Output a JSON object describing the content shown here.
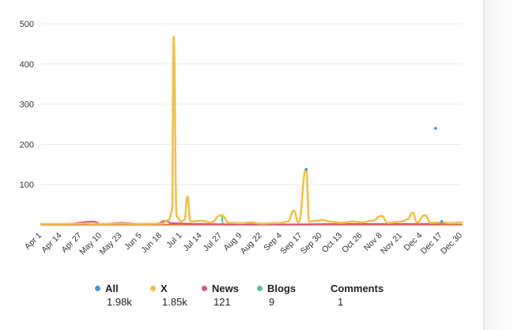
{
  "chart_data": {
    "type": "line",
    "title": "",
    "xlabel": "",
    "ylabel": "",
    "ylim": [
      0,
      500
    ],
    "yticks": [
      100,
      200,
      300,
      400,
      500
    ],
    "grid": true,
    "legend_position": "bottom",
    "x_tick_labels": [
      "Apr 1",
      "Apr 14",
      "Apr 27",
      "May 10",
      "May 23",
      "Jun 5",
      "Jun 18",
      "Jul 1",
      "Jul 14",
      "Jul 27",
      "Aug 9",
      "Aug 22",
      "Sep 4",
      "Sep 17",
      "Sep 30",
      "Oct 13",
      "Oct 26",
      "Nov 8",
      "Nov 21",
      "Dec 4",
      "Dec 17",
      "Dec 30"
    ],
    "x_range": [
      "Apr 1",
      "Dec 30"
    ],
    "series": [
      {
        "name": "All",
        "color": "#4a8fd6",
        "total": "1.98k",
        "points": [
          [
            "Dec 13",
            240
          ],
          [
            "Sep 20",
            138
          ],
          [
            "Dec 17",
            8
          ]
        ]
      },
      {
        "name": "X",
        "color": "#f0c14e",
        "total": "1.85k",
        "points": [
          [
            "Apr 1",
            2
          ],
          [
            "Apr 14",
            2
          ],
          [
            "Apr 27",
            3
          ],
          [
            "May 10",
            2
          ],
          [
            "May 23",
            3
          ],
          [
            "Jun 5",
            2
          ],
          [
            "Jun 18",
            3
          ],
          [
            "Jun 23",
            12
          ],
          [
            "Jun 25",
            35
          ],
          [
            "Jun 26",
            468
          ],
          [
            "Jun 28",
            20
          ],
          [
            "Jul 1",
            8
          ],
          [
            "Jul 3",
            12
          ],
          [
            "Jul 5",
            70
          ],
          [
            "Jul 7",
            8
          ],
          [
            "Jul 14",
            10
          ],
          [
            "Jul 20",
            6
          ],
          [
            "Jul 27",
            24
          ],
          [
            "Aug 1",
            5
          ],
          [
            "Aug 9",
            4
          ],
          [
            "Aug 15",
            6
          ],
          [
            "Aug 22",
            3
          ],
          [
            "Aug 29",
            4
          ],
          [
            "Sep 4",
            5
          ],
          [
            "Sep 8",
            8
          ],
          [
            "Sep 12",
            35
          ],
          [
            "Sep 15",
            6
          ],
          [
            "Sep 20",
            138
          ],
          [
            "Sep 22",
            8
          ],
          [
            "Sep 27",
            10
          ],
          [
            "Oct 1",
            12
          ],
          [
            "Oct 5",
            8
          ],
          [
            "Oct 13",
            5
          ],
          [
            "Oct 20",
            8
          ],
          [
            "Oct 26",
            6
          ],
          [
            "Nov 2",
            10
          ],
          [
            "Nov 8",
            22
          ],
          [
            "Nov 12",
            5
          ],
          [
            "Nov 21",
            8
          ],
          [
            "Nov 25",
            14
          ],
          [
            "Nov 28",
            30
          ],
          [
            "Dec 1",
            6
          ],
          [
            "Dec 6",
            24
          ],
          [
            "Dec 10",
            5
          ],
          [
            "Dec 17",
            6
          ],
          [
            "Dec 24",
            4
          ],
          [
            "Dec 30",
            5
          ]
        ]
      },
      {
        "name": "News",
        "color": "#d6578a",
        "total": "121",
        "points": [
          [
            "Apr 1",
            2
          ],
          [
            "Apr 14",
            1
          ],
          [
            "May 5",
            8
          ],
          [
            "May 10",
            2
          ],
          [
            "May 23",
            5
          ],
          [
            "Jun 5",
            2
          ],
          [
            "Jun 15",
            3
          ],
          [
            "Jun 21",
            10
          ],
          [
            "Jun 24",
            4
          ],
          [
            "Jul 14",
            2
          ],
          [
            "Aug 9",
            1
          ],
          [
            "Sep 4",
            1
          ],
          [
            "Oct 13",
            2
          ],
          [
            "Nov 8",
            2
          ],
          [
            "Dec 4",
            2
          ],
          [
            "Dec 17",
            3
          ],
          [
            "Dec 30",
            6
          ]
        ]
      },
      {
        "name": "Blogs",
        "color": "#5cbf9b",
        "total": "9",
        "points": [
          [
            "Jul 27",
            24
          ],
          [
            "Jul 28",
            2
          ]
        ]
      },
      {
        "name": "Comments",
        "color": "#e07b4b",
        "total": "1",
        "points": [
          [
            "Apr 1",
            0
          ],
          [
            "Dec 30",
            0
          ]
        ]
      }
    ]
  }
}
